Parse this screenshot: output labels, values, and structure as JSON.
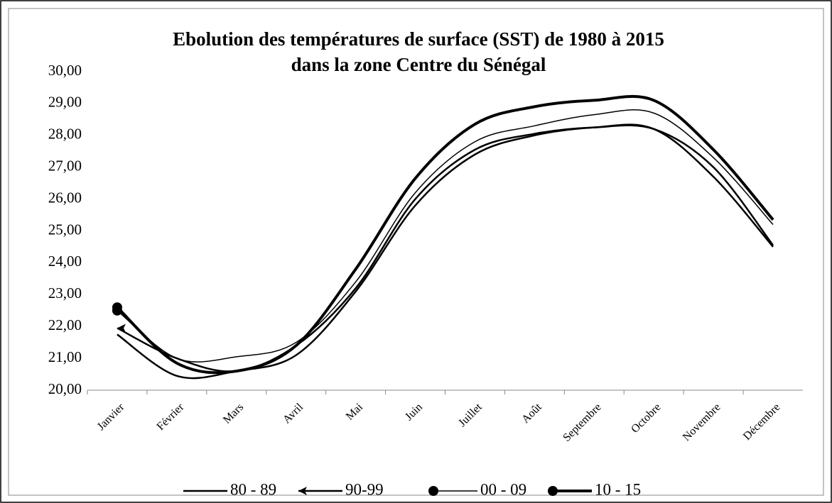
{
  "chart_data": {
    "type": "line",
    "title": [
      "Ebolution des températures de surface (SST) de 1980 à 2015",
      "dans la zone Centre du Sénégal"
    ],
    "categories": [
      "Janvier",
      "Février",
      "Mars",
      "Avril",
      "Mai",
      "Juin",
      "Juillet",
      "Août",
      "Septembre",
      "Octobre",
      "Novembre",
      "Décembre"
    ],
    "series": [
      {
        "name": "80 - 89",
        "color": "#000000",
        "line_width": 2.5,
        "marker": "none",
        "values": [
          21.75,
          20.45,
          20.6,
          21.1,
          23.1,
          25.8,
          27.4,
          28.0,
          28.25,
          28.2,
          26.7,
          24.5
        ]
      },
      {
        "name": "90-99",
        "color": "#000000",
        "line_width": 2.5,
        "marker": "arrow",
        "values": [
          21.95,
          21.0,
          20.6,
          21.4,
          23.2,
          26.0,
          27.55,
          28.05,
          28.25,
          28.2,
          27.0,
          24.55
        ]
      },
      {
        "name": "00 - 09",
        "color": "#000000",
        "line_width": 1.5,
        "marker": "circle",
        "values": [
          22.5,
          21.0,
          21.05,
          21.5,
          23.4,
          26.2,
          27.8,
          28.3,
          28.65,
          28.7,
          27.3,
          25.2
        ]
      },
      {
        "name": "10 - 15",
        "color": "#000000",
        "line_width": 4,
        "marker": "circle",
        "values": [
          22.6,
          20.85,
          20.6,
          21.4,
          23.8,
          26.65,
          28.35,
          28.9,
          29.1,
          29.1,
          27.55,
          25.35
        ]
      }
    ],
    "ylim": [
      20,
      30
    ],
    "yticks": [
      {
        "value": 20,
        "label": "20,00"
      },
      {
        "value": 21,
        "label": "21,00"
      },
      {
        "value": 22,
        "label": "22,00"
      },
      {
        "value": 23,
        "label": "23,00"
      },
      {
        "value": 24,
        "label": "24,00"
      },
      {
        "value": 25,
        "label": "25,00"
      },
      {
        "value": 26,
        "label": "26,00"
      },
      {
        "value": 27,
        "label": "27,00"
      },
      {
        "value": 28,
        "label": "28,00"
      },
      {
        "value": 29,
        "label": "29,00"
      },
      {
        "value": 30,
        "label": "30,00"
      }
    ],
    "grid": false,
    "legend": "bottom"
  }
}
